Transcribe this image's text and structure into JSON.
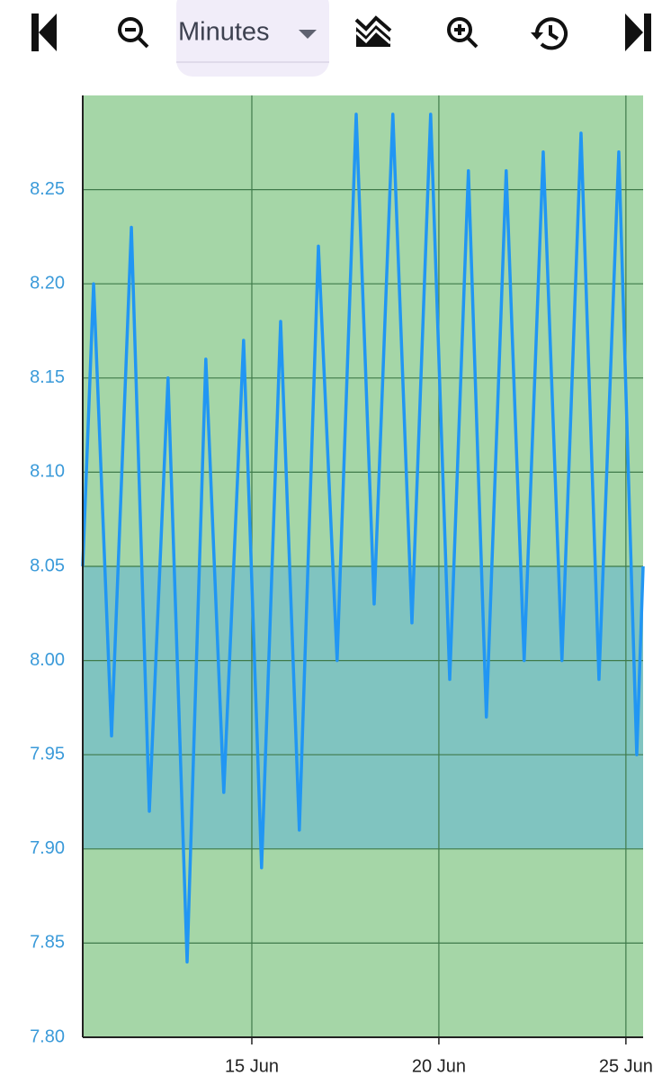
{
  "toolbar": {
    "interval": "Minutes"
  },
  "chart_data": {
    "type": "line",
    "x": [
      10.48,
      10.77,
      11.25,
      11.78,
      12.26,
      12.76,
      13.27,
      13.77,
      14.25,
      14.78,
      15.26,
      15.77,
      16.27,
      16.78,
      17.28,
      17.79,
      18.27,
      18.77,
      19.28,
      19.78,
      20.29,
      20.79,
      21.27,
      21.8,
      22.28,
      22.79,
      23.29,
      23.8,
      24.28,
      24.81,
      25.29,
      25.46
    ],
    "values": [
      8.05,
      8.2,
      7.96,
      8.23,
      7.92,
      8.15,
      7.84,
      8.16,
      7.93,
      8.17,
      7.89,
      8.18,
      7.91,
      8.22,
      8.0,
      8.29,
      8.03,
      8.29,
      8.02,
      8.29,
      7.99,
      8.26,
      7.97,
      8.26,
      8.0,
      8.27,
      8.0,
      8.28,
      7.99,
      8.27,
      7.95,
      8.05
    ],
    "color": "#2196f3",
    "xlim": [
      10.48,
      25.46
    ],
    "xticks": [
      {
        "value": 15,
        "label": "15 Jun"
      },
      {
        "value": 20,
        "label": "20 Jun"
      },
      {
        "value": 25,
        "label": "25 Jun"
      }
    ],
    "ylim": [
      7.8,
      8.3
    ],
    "yticks": [
      {
        "value": 7.8,
        "label": "7.80"
      },
      7.85,
      {
        "value": 7.9,
        "label": "7.90"
      },
      7.95,
      {
        "value": 8.0,
        "label": "8.00"
      },
      8.05,
      {
        "value": 8.1,
        "label": "8.10"
      },
      8.15,
      {
        "value": 8.2,
        "label": "8.20"
      },
      8.25
    ],
    "grid": true,
    "background": "#a5d6a7",
    "target_range": [
      7.9,
      8.05
    ],
    "target_color": "#80c4c0"
  }
}
